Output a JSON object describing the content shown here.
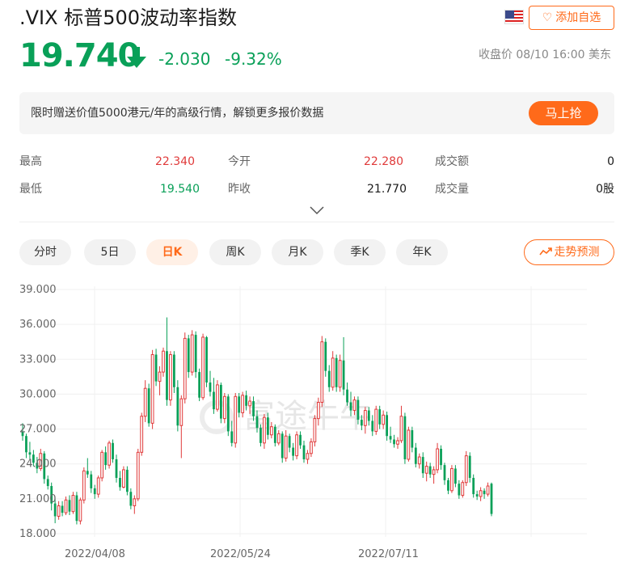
{
  "header": {
    "title": ".VIX 标普500波动率指数",
    "favorite_label": "添加自选"
  },
  "quote": {
    "price": "19.740",
    "change": "-2.030",
    "change_pct": "-9.32%",
    "close_info": "收盘价 08/10 16:00 美东"
  },
  "promo": {
    "text": "限时赠送价值5000港元/年的高级行情，解锁更多报价数据",
    "button": "马上抢"
  },
  "stats": {
    "high_label": "最高",
    "high_value": "22.340",
    "open_label": "今开",
    "open_value": "22.280",
    "turnover_label": "成交额",
    "turnover_value": "0",
    "low_label": "最低",
    "low_value": "19.540",
    "prev_close_label": "昨收",
    "prev_close_value": "21.770",
    "volume_label": "成交量",
    "volume_value": "0股"
  },
  "tabs": [
    "分时",
    "5日",
    "日K",
    "周K",
    "月K",
    "季K",
    "年K"
  ],
  "active_tab": 2,
  "trend_button": "走势预测",
  "colors": {
    "up": "#e03a3a",
    "down": "#09a058",
    "accent": "#ff6a1a"
  },
  "chart_data": {
    "type": "candlestick",
    "y_ticks": [
      "39.000",
      "36.000",
      "33.000",
      "30.000",
      "27.000",
      "24.000",
      "21.000",
      "18.000"
    ],
    "ylim": [
      18,
      39
    ],
    "x_labels": [
      "2022/04/08",
      "2022/05/24",
      "2022/07/11"
    ],
    "watermark": "富途牛牛",
    "candles": [
      [
        26.8,
        27.5,
        26.0,
        26.4
      ],
      [
        26.4,
        26.6,
        24.5,
        25.0
      ],
      [
        25.0,
        25.9,
        24.4,
        24.8
      ],
      [
        24.8,
        25.2,
        23.8,
        24.1
      ],
      [
        24.1,
        24.6,
        23.2,
        23.6
      ],
      [
        23.6,
        25.3,
        23.4,
        24.9
      ],
      [
        24.9,
        25.1,
        22.3,
        22.7
      ],
      [
        22.7,
        23.0,
        21.8,
        22.1
      ],
      [
        22.1,
        22.4,
        20.0,
        20.6
      ],
      [
        20.6,
        21.0,
        18.9,
        19.5
      ],
      [
        19.5,
        20.8,
        19.2,
        20.4
      ],
      [
        20.4,
        20.8,
        19.5,
        19.8
      ],
      [
        19.8,
        21.2,
        19.6,
        20.9
      ],
      [
        20.9,
        21.3,
        19.6,
        19.9
      ],
      [
        19.9,
        21.6,
        19.7,
        21.3
      ],
      [
        21.3,
        21.6,
        18.8,
        19.1
      ],
      [
        19.1,
        21.1,
        18.8,
        20.9
      ],
      [
        20.9,
        23.7,
        20.6,
        23.4
      ],
      [
        23.4,
        24.5,
        22.8,
        23.1
      ],
      [
        23.1,
        23.4,
        21.5,
        21.9
      ],
      [
        21.9,
        22.2,
        21.0,
        21.4
      ],
      [
        21.4,
        23.0,
        21.1,
        22.8
      ],
      [
        22.8,
        25.2,
        22.5,
        25.0
      ],
      [
        25.0,
        25.5,
        23.5,
        23.9
      ],
      [
        23.9,
        26.0,
        23.6,
        25.8
      ],
      [
        25.8,
        26.1,
        24.1,
        24.4
      ],
      [
        24.4,
        24.8,
        22.4,
        22.8
      ],
      [
        22.8,
        23.4,
        21.7,
        22.0
      ],
      [
        22.0,
        23.8,
        21.9,
        23.5
      ],
      [
        23.5,
        23.8,
        21.3,
        21.6
      ],
      [
        21.6,
        21.9,
        20.1,
        20.4
      ],
      [
        20.4,
        21.3,
        19.7,
        21.0
      ],
      [
        21.0,
        25.3,
        20.8,
        25.0
      ],
      [
        25.0,
        28.4,
        24.7,
        28.1
      ],
      [
        28.1,
        31.2,
        27.6,
        30.5
      ],
      [
        30.5,
        30.9,
        27.2,
        27.5
      ],
      [
        27.5,
        33.8,
        27.0,
        33.4
      ],
      [
        33.4,
        33.9,
        30.7,
        31.1
      ],
      [
        31.1,
        32.4,
        29.9,
        31.9
      ],
      [
        31.9,
        34.0,
        31.5,
        33.7
      ],
      [
        33.7,
        36.6,
        29.0,
        29.5
      ],
      [
        29.5,
        33.7,
        29.0,
        33.4
      ],
      [
        33.4,
        33.7,
        30.1,
        30.6
      ],
      [
        30.6,
        31.2,
        26.8,
        27.3
      ],
      [
        27.3,
        29.9,
        24.5,
        29.6
      ],
      [
        29.6,
        35.3,
        29.2,
        34.8
      ],
      [
        34.8,
        35.1,
        31.4,
        31.9
      ],
      [
        31.9,
        35.5,
        31.6,
        35.1
      ],
      [
        35.1,
        35.4,
        31.4,
        31.9
      ],
      [
        31.9,
        32.2,
        29.4,
        29.7
      ],
      [
        29.7,
        35.2,
        29.5,
        34.9
      ],
      [
        34.9,
        35.0,
        30.6,
        31.0
      ],
      [
        31.0,
        32.0,
        29.8,
        30.2
      ],
      [
        30.2,
        31.4,
        28.3,
        28.7
      ],
      [
        28.7,
        31.2,
        28.5,
        30.8
      ],
      [
        30.8,
        31.0,
        27.5,
        27.9
      ],
      [
        27.9,
        30.1,
        27.5,
        29.8
      ],
      [
        29.8,
        30.0,
        26.4,
        26.8
      ],
      [
        26.8,
        27.7,
        25.5,
        25.8
      ],
      [
        25.8,
        30.1,
        25.4,
        29.8
      ],
      [
        29.8,
        30.1,
        28.0,
        28.4
      ],
      [
        28.4,
        30.2,
        28.0,
        29.9
      ],
      [
        29.9,
        30.3,
        28.6,
        29.0
      ],
      [
        29.0,
        29.8,
        28.3,
        29.4
      ],
      [
        29.4,
        29.8,
        27.7,
        28.1
      ],
      [
        28.1,
        28.6,
        26.7,
        27.1
      ],
      [
        27.1,
        27.4,
        25.5,
        25.8
      ],
      [
        25.8,
        28.3,
        25.3,
        28.0
      ],
      [
        28.0,
        28.4,
        26.1,
        26.5
      ],
      [
        26.5,
        27.6,
        26.2,
        27.2
      ],
      [
        27.2,
        27.4,
        25.5,
        25.8
      ],
      [
        25.8,
        26.9,
        25.6,
        26.6
      ],
      [
        26.6,
        26.8,
        24.1,
        24.5
      ],
      [
        24.5,
        26.9,
        24.2,
        26.4
      ],
      [
        26.4,
        26.6,
        25.0,
        25.4
      ],
      [
        25.4,
        25.8,
        24.3,
        24.7
      ],
      [
        24.7,
        26.8,
        24.4,
        26.5
      ],
      [
        26.5,
        26.8,
        25.3,
        25.6
      ],
      [
        25.6,
        26.0,
        24.1,
        24.4
      ],
      [
        24.4,
        25.2,
        24.0,
        24.9
      ],
      [
        24.9,
        26.2,
        24.6,
        25.9
      ],
      [
        25.9,
        28.2,
        25.5,
        27.9
      ],
      [
        27.9,
        29.7,
        27.3,
        29.3
      ],
      [
        29.3,
        35.0,
        28.9,
        34.5
      ],
      [
        34.5,
        34.8,
        31.5,
        32.0
      ],
      [
        32.0,
        32.5,
        30.2,
        30.6
      ],
      [
        30.6,
        33.7,
        30.3,
        33.1
      ],
      [
        33.1,
        33.4,
        30.2,
        30.6
      ],
      [
        30.6,
        33.4,
        30.2,
        32.9
      ],
      [
        32.9,
        34.9,
        29.9,
        30.4
      ],
      [
        30.4,
        31.0,
        29.0,
        29.3
      ],
      [
        29.3,
        30.2,
        28.1,
        28.6
      ],
      [
        28.6,
        29.8,
        28.2,
        29.5
      ],
      [
        29.5,
        29.8,
        27.4,
        27.8
      ],
      [
        27.8,
        28.2,
        26.9,
        27.3
      ],
      [
        27.3,
        28.9,
        26.6,
        28.6
      ],
      [
        28.6,
        28.9,
        27.3,
        27.7
      ],
      [
        27.7,
        28.2,
        26.4,
        26.8
      ],
      [
        26.8,
        29.0,
        26.5,
        28.7
      ],
      [
        28.7,
        29.0,
        27.0,
        27.4
      ],
      [
        27.4,
        28.6,
        27.0,
        28.2
      ],
      [
        28.2,
        28.5,
        26.0,
        26.4
      ],
      [
        26.4,
        27.2,
        25.8,
        26.1
      ],
      [
        26.1,
        26.5,
        25.4,
        25.7
      ],
      [
        25.7,
        26.3,
        25.3,
        26.0
      ],
      [
        26.0,
        29.0,
        25.8,
        28.1
      ],
      [
        28.1,
        28.4,
        24.0,
        24.4
      ],
      [
        24.4,
        27.2,
        24.2,
        26.9
      ],
      [
        26.9,
        27.2,
        25.0,
        25.4
      ],
      [
        25.4,
        25.8,
        23.7,
        24.0
      ],
      [
        24.0,
        24.9,
        23.6,
        24.6
      ],
      [
        24.6,
        25.0,
        22.8,
        23.2
      ],
      [
        23.2,
        24.2,
        22.5,
        23.8
      ],
      [
        23.8,
        24.1,
        22.8,
        23.1
      ],
      [
        23.1,
        23.8,
        22.3,
        23.5
      ],
      [
        23.5,
        25.8,
        23.2,
        25.3
      ],
      [
        25.3,
        25.6,
        23.5,
        23.9
      ],
      [
        23.9,
        24.1,
        22.2,
        22.6
      ],
      [
        22.6,
        22.8,
        21.4,
        21.7
      ],
      [
        21.7,
        23.9,
        21.5,
        23.6
      ],
      [
        23.6,
        23.9,
        22.0,
        22.3
      ],
      [
        22.3,
        22.6,
        21.0,
        21.3
      ],
      [
        21.3,
        22.6,
        21.1,
        22.4
      ],
      [
        22.4,
        25.1,
        22.1,
        24.7
      ],
      [
        24.7,
        25.0,
        22.4,
        22.8
      ],
      [
        22.8,
        23.1,
        21.1,
        21.4
      ],
      [
        21.4,
        21.7,
        20.9,
        21.2
      ],
      [
        21.2,
        22.0,
        20.8,
        21.7
      ],
      [
        21.7,
        21.9,
        21.0,
        21.4
      ],
      [
        21.4,
        22.4,
        21.2,
        22.1
      ],
      [
        22.3,
        22.4,
        19.5,
        19.7
      ]
    ]
  }
}
